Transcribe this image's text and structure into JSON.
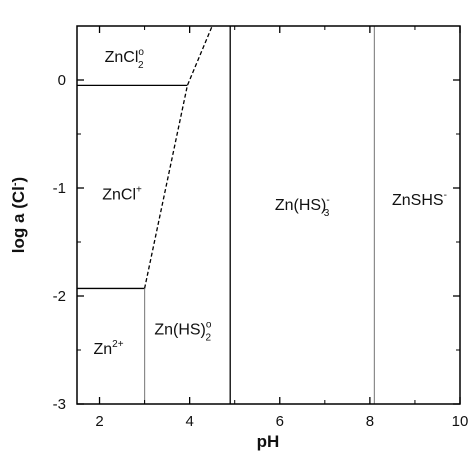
{
  "chart_data": {
    "type": "line",
    "title": "",
    "xlabel": "pH",
    "ylabel_parts": [
      "log a (Cl",
      "-",
      ")"
    ],
    "xlim": [
      1.5,
      10
    ],
    "ylim": [
      -3,
      0.5
    ],
    "xticks": [
      2,
      4,
      6,
      8,
      10
    ],
    "yticks": [
      0,
      -1,
      -2,
      -3
    ],
    "xtick_labels": [
      "2",
      "4",
      "6",
      "8",
      "10"
    ],
    "ytick_labels": [
      "0",
      "-1",
      "-2",
      "-3"
    ],
    "grid": false,
    "boundaries": [
      {
        "style": "solid-black",
        "points": [
          [
            1.5,
            -0.05
          ],
          [
            3.95,
            -0.05
          ]
        ]
      },
      {
        "style": "dashed",
        "points": [
          [
            3.0,
            -1.93
          ],
          [
            3.95,
            -0.05
          ],
          [
            4.5,
            0.5
          ]
        ]
      },
      {
        "style": "solid-black",
        "points": [
          [
            1.5,
            -1.93
          ],
          [
            3.0,
            -1.93
          ]
        ]
      },
      {
        "style": "solid-gray",
        "points": [
          [
            3.0,
            -3.0
          ],
          [
            3.0,
            -1.93
          ]
        ]
      },
      {
        "style": "solid-black",
        "points": [
          [
            4.9,
            -3.0
          ],
          [
            4.9,
            0.5
          ]
        ]
      },
      {
        "style": "solid-gray",
        "points": [
          [
            8.1,
            -3.0
          ],
          [
            8.1,
            0.5
          ]
        ]
      }
    ],
    "fields": [
      {
        "base": "ZnCl",
        "sub": "2",
        "sup": "o",
        "x": 2.55,
        "y": 0.22
      },
      {
        "base": "ZnCl",
        "sub": "",
        "sup": "+",
        "x": 2.5,
        "y": -1.05
      },
      {
        "base": "Zn",
        "sub": "",
        "sup": "2+",
        "x": 2.2,
        "y": -2.48
      },
      {
        "base": "Zn(HS)",
        "sub": "2",
        "sup": "o",
        "x": 3.85,
        "y": -2.3
      },
      {
        "base": "Zn(HS)",
        "sub": "3",
        "sup": "-",
        "x": 6.5,
        "y": -1.15
      },
      {
        "base": "ZnSHS",
        "sub": "",
        "sup": "-",
        "x": 9.1,
        "y": -1.1
      }
    ]
  }
}
